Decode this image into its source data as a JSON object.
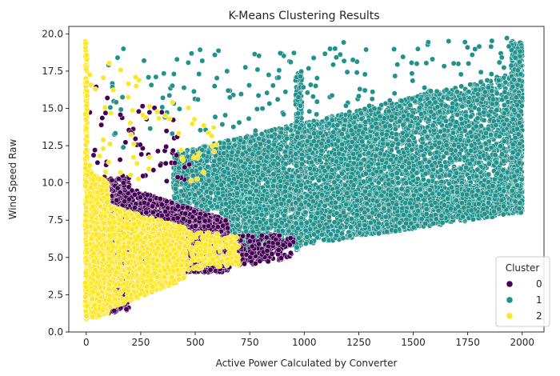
{
  "chart_data": {
    "type": "scatter",
    "title": "K-Means Clustering Results",
    "xlabel": "Active Power Calculated by Converter",
    "ylabel": "Wind Speed Raw",
    "xlim": [
      -80,
      2100
    ],
    "ylim": [
      0,
      20.5
    ],
    "xticks": [
      "0",
      "250",
      "500",
      "750",
      "1000",
      "1250",
      "1500",
      "1750",
      "2000"
    ],
    "yticks": [
      "0.0",
      "2.5",
      "5.0",
      "7.5",
      "10.0",
      "12.5",
      "15.0",
      "17.5",
      "20.0"
    ],
    "legend": {
      "title": "Cluster",
      "position": "lower-right",
      "entries": [
        {
          "label": "0",
          "color": "#440154"
        },
        {
          "label": "1",
          "color": "#21918c"
        },
        {
          "label": "2",
          "color": "#fde725"
        }
      ]
    },
    "series": [
      {
        "name": "1",
        "color": "#21918c",
        "regions": [
          {
            "x": [
              400,
              2000
            ],
            "y_low_at_x0": 8.0,
            "y_low_at_x1": 9.0,
            "y_high_at_x0": 12.0,
            "y_high_at_x1": 17.5,
            "count": 5200
          },
          {
            "x": [
              600,
              2000
            ],
            "y_low_at_x0": 5.0,
            "y_low_at_x1": 8.0,
            "y_high_at_x0": 9.0,
            "y_high_at_x1": 10.0,
            "count": 2600
          },
          {
            "x": [
              1950,
              2000
            ],
            "y_low_at_x0": 8.0,
            "y_low_at_x1": 8.0,
            "y_high_at_x0": 19.5,
            "y_high_at_x1": 19.5,
            "count": 500
          },
          {
            "x": [
              960,
              990
            ],
            "y_low_at_x0": 5.5,
            "y_low_at_x1": 5.5,
            "y_high_at_x0": 17.5,
            "y_high_at_x1": 17.5,
            "count": 250
          },
          {
            "x": [
              100,
              2000
            ],
            "y_low_at_x0": 12.0,
            "y_low_at_x1": 16.0,
            "y_high_at_x0": 19.0,
            "y_high_at_x1": 19.8,
            "count": 180
          }
        ]
      },
      {
        "name": "0",
        "color": "#440154",
        "regions": [
          {
            "x": [
              120,
              650
            ],
            "y_low_at_x0": 4.0,
            "y_low_at_x1": 4.0,
            "y_high_at_x0": 10.0,
            "y_high_at_x1": 7.5,
            "count": 2400
          },
          {
            "x": [
              0,
              200
            ],
            "y_low_at_x0": 1.0,
            "y_low_at_x1": 1.5,
            "y_high_at_x0": 10.0,
            "y_high_at_x1": 10.5,
            "count": 600
          },
          {
            "x": [
              550,
              950
            ],
            "y_low_at_x0": 4.0,
            "y_low_at_x1": 5.0,
            "y_high_at_x0": 6.5,
            "y_high_at_x1": 6.5,
            "count": 300
          },
          {
            "x": [
              0,
              480
            ],
            "y_low_at_x0": 10.0,
            "y_low_at_x1": 10.0,
            "y_high_at_x0": 17.0,
            "y_high_at_x1": 14.0,
            "count": 60
          }
        ]
      },
      {
        "name": "2",
        "color": "#fde725",
        "regions": [
          {
            "x": [
              0,
              100
            ],
            "y_low_at_x0": 0.8,
            "y_low_at_x1": 1.2,
            "y_high_at_x0": 11.0,
            "y_high_at_x1": 10.0,
            "count": 1800
          },
          {
            "x": [
              100,
              450
            ],
            "y_low_at_x0": 1.5,
            "y_low_at_x1": 3.5,
            "y_high_at_x0": 8.5,
            "y_high_at_x1": 7.0,
            "count": 1400
          },
          {
            "x": [
              -5,
              5
            ],
            "y_low_at_x0": 1.0,
            "y_low_at_x1": 1.0,
            "y_high_at_x0": 19.5,
            "y_high_at_x1": 19.5,
            "count": 250
          },
          {
            "x": [
              350,
              700
            ],
            "y_low_at_x0": 4.0,
            "y_low_at_x1": 4.5,
            "y_high_at_x0": 7.0,
            "y_high_at_x1": 6.5,
            "count": 300
          },
          {
            "x": [
              0,
              600
            ],
            "y_low_at_x0": 10.0,
            "y_low_at_x1": 10.0,
            "y_high_at_x0": 19.0,
            "y_high_at_x1": 14.0,
            "count": 60
          }
        ]
      }
    ]
  }
}
